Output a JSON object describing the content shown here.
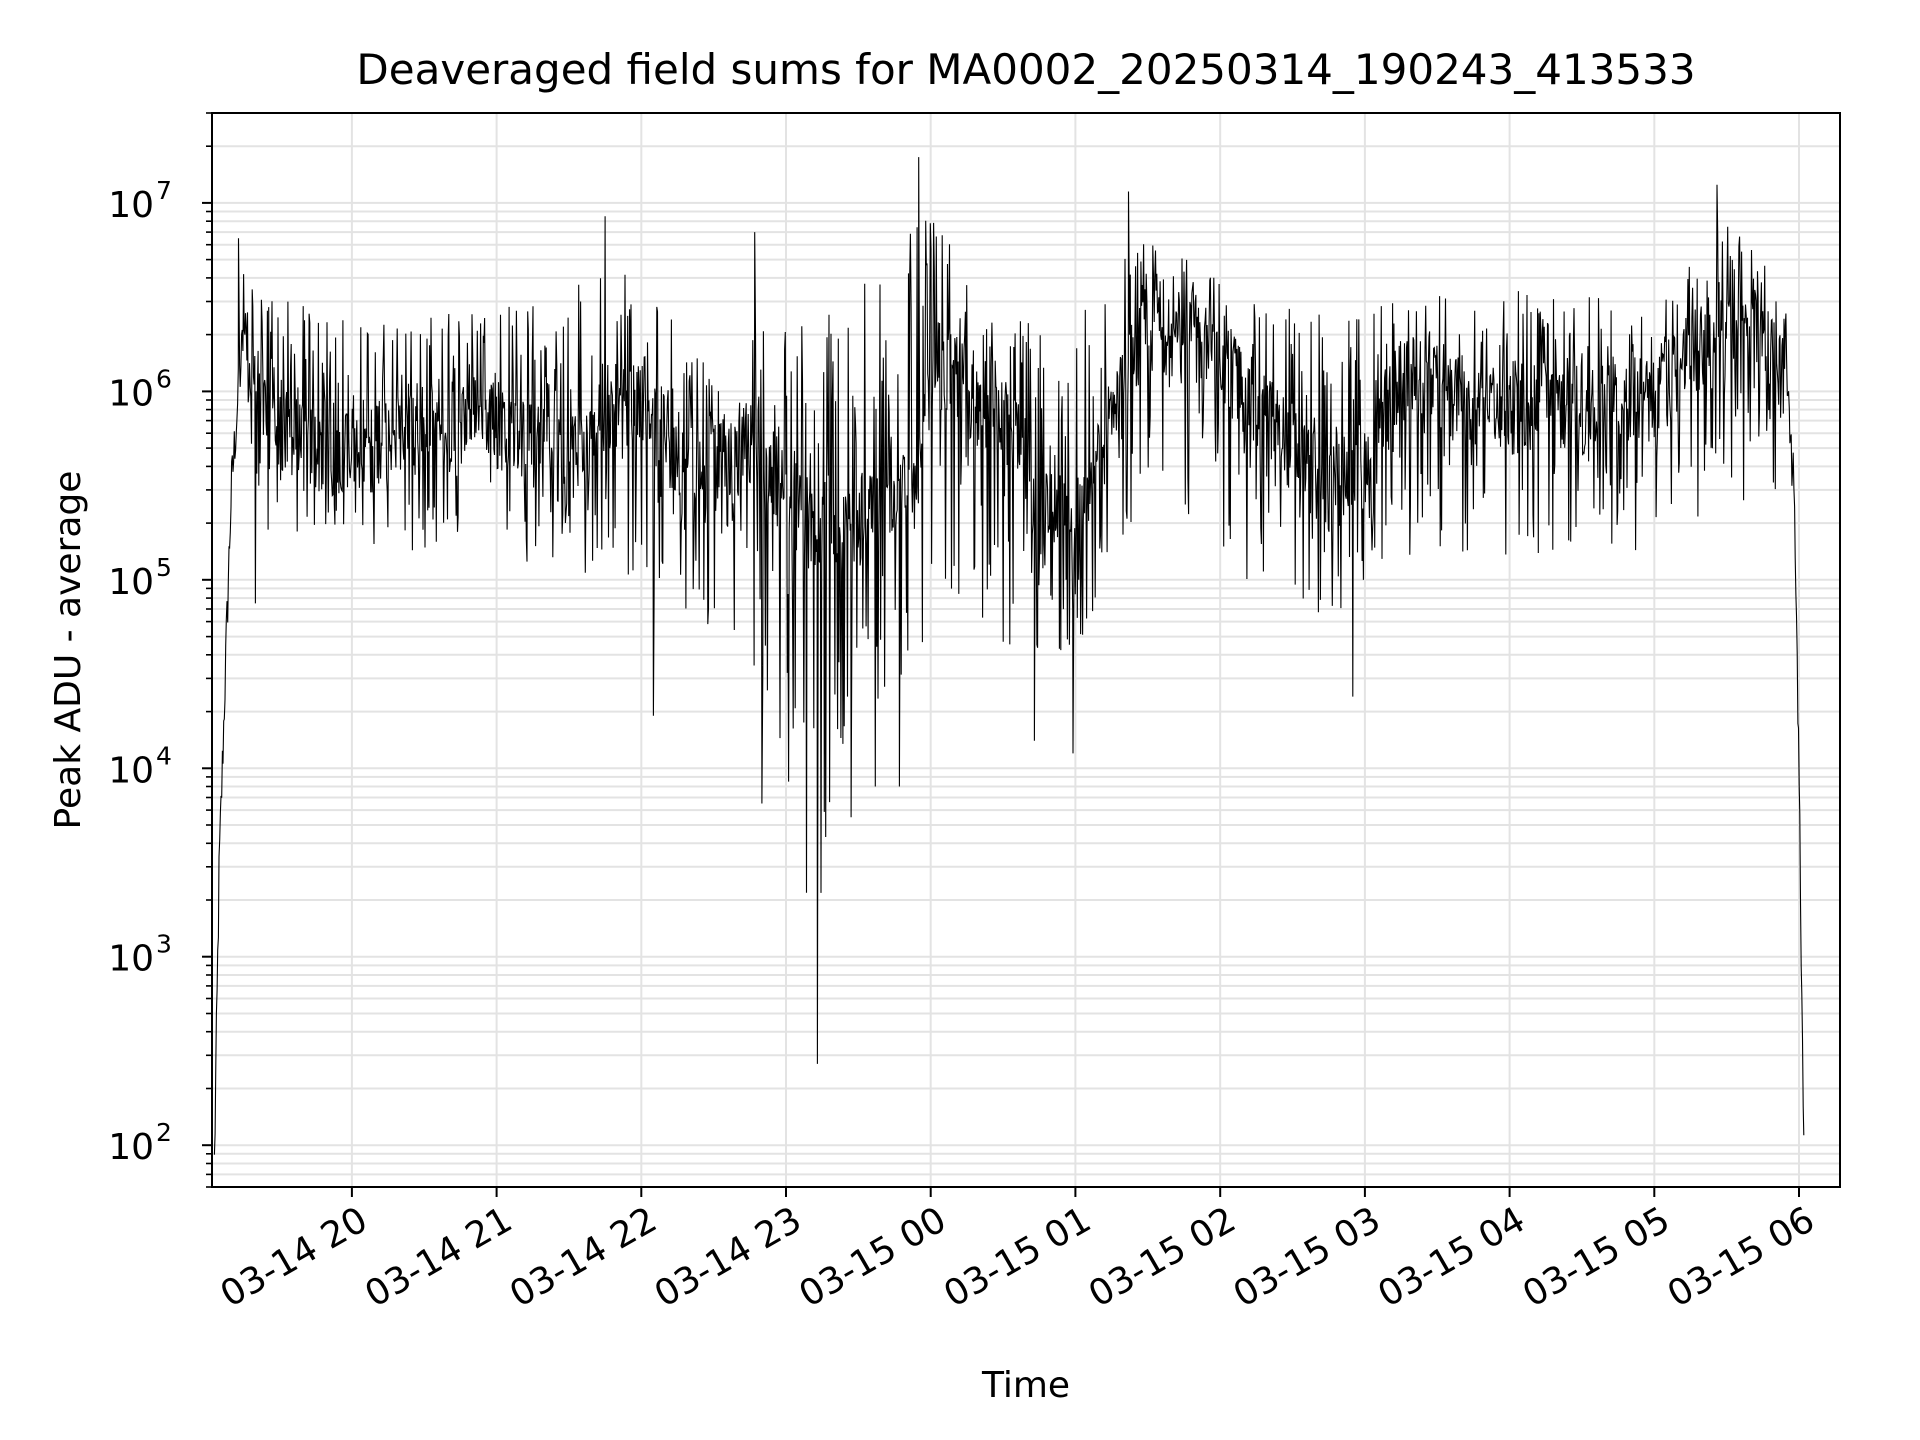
{
  "chart_data": {
    "type": "line",
    "title": "Deaveraged field sums for MA0002_20250314_190243_413533",
    "xlabel": "Time",
    "ylabel": "Peak ADU - average",
    "y_scale": "log",
    "ylim": [
      60,
      30000000
    ],
    "xlim": [
      "2025-03-14 19:02",
      "2025-03-15 06:17"
    ],
    "grid": true,
    "legend": "none",
    "line_color": "#000000",
    "x_ticks": [
      {
        "value": "2025-03-14 20:00",
        "label": "03-14 20"
      },
      {
        "value": "2025-03-14 21:00",
        "label": "03-14 21"
      },
      {
        "value": "2025-03-14 22:00",
        "label": "03-14 22"
      },
      {
        "value": "2025-03-14 23:00",
        "label": "03-14 23"
      },
      {
        "value": "2025-03-15 00:00",
        "label": "03-15 00"
      },
      {
        "value": "2025-03-15 01:00",
        "label": "03-15 01"
      },
      {
        "value": "2025-03-15 02:00",
        "label": "03-15 02"
      },
      {
        "value": "2025-03-15 03:00",
        "label": "03-15 03"
      },
      {
        "value": "2025-03-15 04:00",
        "label": "03-15 04"
      },
      {
        "value": "2025-03-15 05:00",
        "label": "03-15 05"
      },
      {
        "value": "2025-03-15 06:00",
        "label": "03-15 06"
      }
    ],
    "y_ticks": [
      {
        "value": 100,
        "base": "10",
        "exp": "2"
      },
      {
        "value": 1000,
        "base": "10",
        "exp": "3"
      },
      {
        "value": 10000,
        "base": "10",
        "exp": "4"
      },
      {
        "value": 100000,
        "base": "10",
        "exp": "5"
      },
      {
        "value": 1000000,
        "base": "10",
        "exp": "6"
      },
      {
        "value": 10000000,
        "base": "10",
        "exp": "7"
      }
    ],
    "series": [
      {
        "x": [
          "2025-03-14 19:03",
          "2025-03-14 19:05",
          "2025-03-14 19:08",
          "2025-03-14 19:10",
          "2025-03-14 19:13",
          "2025-03-14 19:15",
          "2025-03-14 19:20",
          "2025-03-14 19:25",
          "2025-03-14 19:30",
          "2025-03-14 19:40",
          "2025-03-14 19:50",
          "2025-03-14 20:00",
          "2025-03-14 20:15",
          "2025-03-14 20:30",
          "2025-03-14 20:45",
          "2025-03-14 21:00",
          "2025-03-14 21:15",
          "2025-03-14 21:30",
          "2025-03-14 21:45",
          "2025-03-14 22:00",
          "2025-03-14 22:15",
          "2025-03-14 22:30",
          "2025-03-14 22:45",
          "2025-03-14 23:00",
          "2025-03-14 23:15",
          "2025-03-14 23:30",
          "2025-03-14 23:45",
          "2025-03-14 23:55",
          "2025-03-15 00:00",
          "2025-03-15 00:15",
          "2025-03-15 00:30",
          "2025-03-15 00:45",
          "2025-03-15 01:00",
          "2025-03-15 01:15",
          "2025-03-15 01:30",
          "2025-03-15 01:45",
          "2025-03-15 02:00",
          "2025-03-15 02:15",
          "2025-03-15 02:30",
          "2025-03-15 02:45",
          "2025-03-15 03:00",
          "2025-03-15 03:15",
          "2025-03-15 03:30",
          "2025-03-15 03:45",
          "2025-03-15 04:00",
          "2025-03-15 04:15",
          "2025-03-15 04:30",
          "2025-03-15 04:45",
          "2025-03-15 05:00",
          "2025-03-15 05:15",
          "2025-03-15 05:30",
          "2025-03-15 05:45",
          "2025-03-15 05:55",
          "2025-03-15 05:58",
          "2025-03-15 06:00",
          "2025-03-15 06:02"
        ],
        "y": [
          80,
          3000,
          50000,
          300000,
          1000000,
          2000000,
          1000000,
          700000,
          600000,
          500000,
          500000,
          500000,
          600000,
          600000,
          700000,
          800000,
          500000,
          400000,
          800000,
          1000000,
          400000,
          400000,
          500000,
          300000,
          150000,
          200000,
          300000,
          300000,
          1500000,
          1000000,
          700000,
          300000,
          200000,
          700000,
          2000000,
          2000000,
          1500000,
          800000,
          500000,
          300000,
          400000,
          1200000,
          1000000,
          800000,
          800000,
          1000000,
          800000,
          900000,
          1000000,
          1500000,
          2000000,
          2500000,
          1000000,
          300000,
          10000,
          80
        ]
      }
    ],
    "envelope_min": {
      "x": [
        "2025-03-14 19:20",
        "2025-03-14 20:00",
        "2025-03-14 21:00",
        "2025-03-14 22:00",
        "2025-03-14 22:50",
        "2025-03-14 23:10",
        "2025-03-14 23:30",
        "2025-03-14 23:45",
        "2025-03-15 00:05",
        "2025-03-15 00:45",
        "2025-03-15 01:00",
        "2025-03-15 01:30",
        "2025-03-15 02:00",
        "2025-03-15 02:45",
        "2025-03-15 03:00",
        "2025-03-15 03:30",
        "2025-03-15 04:00",
        "2025-03-15 04:30",
        "2025-03-15 05:00",
        "2025-03-15 05:45"
      ],
      "y": [
        150000,
        120000,
        100000,
        60000,
        20000,
        300,
        20000,
        10000,
        50000,
        20000,
        30000,
        200000,
        80000,
        40000,
        80000,
        100000,
        80000,
        100000,
        100000,
        200000
      ]
    },
    "envelope_max": {
      "x": [
        "2025-03-14 19:15",
        "2025-03-14 20:00",
        "2025-03-14 21:00",
        "2025-03-14 21:45",
        "2025-03-14 22:30",
        "2025-03-14 23:00",
        "2025-03-14 23:55",
        "2025-03-15 00:30",
        "2025-03-15 01:20",
        "2025-03-15 02:00",
        "2025-03-15 03:00",
        "2025-03-15 04:00",
        "2025-03-15 05:00",
        "2025-03-15 05:30",
        "2025-03-15 05:55"
      ],
      "y": [
        6000000,
        3500000,
        4000000,
        8000000,
        2500000,
        4000000,
        17000000,
        3000000,
        10000000,
        5000000,
        4000000,
        5000000,
        4000000,
        12000000,
        4000000
      ]
    },
    "spikes": [
      {
        "x": "2025-03-14 23:13",
        "y": 270
      },
      {
        "x": "2025-03-14 23:27",
        "y": 5500
      },
      {
        "x": "2025-03-14 22:50",
        "y": 6500
      },
      {
        "x": "2025-03-14 23:37",
        "y": 8000
      },
      {
        "x": "2025-03-14 23:47",
        "y": 8000
      },
      {
        "x": "2025-03-15 00:43",
        "y": 14000
      },
      {
        "x": "2025-03-15 00:59",
        "y": 12000
      },
      {
        "x": "2025-03-14 19:20",
        "y": 75000
      },
      {
        "x": "2025-03-14 22:05",
        "y": 19000
      },
      {
        "x": "2025-03-15 02:55",
        "y": 24000
      },
      {
        "x": "2025-03-14 23:55",
        "y": 17500000
      },
      {
        "x": "2025-03-15 01:22",
        "y": 11500000
      },
      {
        "x": "2025-03-15 05:26",
        "y": 12500000
      },
      {
        "x": "2025-03-14 21:45",
        "y": 8500000
      },
      {
        "x": "2025-03-14 22:47",
        "y": 7000000
      },
      {
        "x": "2025-03-14 19:13",
        "y": 6500000
      }
    ]
  }
}
